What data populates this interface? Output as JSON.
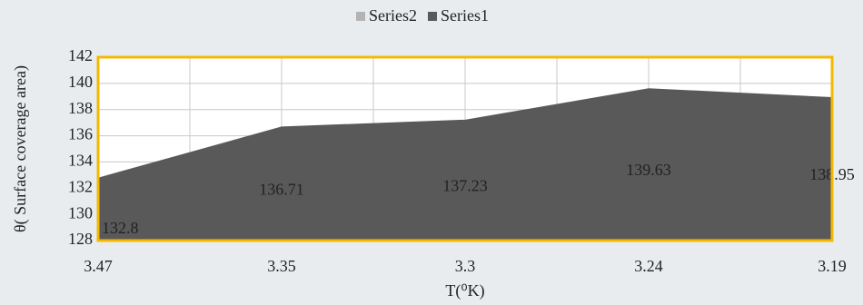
{
  "chart_data": {
    "type": "area",
    "x_label": "T(⁰K)",
    "y_label": "θ( Surface coverage area)",
    "categories": [
      "3.47",
      "3.35",
      "3.3",
      "3.24",
      "3.19"
    ],
    "series": [
      {
        "name": "Series2",
        "color": "#b3b3b3",
        "values": [
          null,
          null,
          null,
          null,
          null
        ]
      },
      {
        "name": "Series1",
        "color": "#595959",
        "values": [
          132.8,
          136.71,
          137.23,
          139.63,
          138.95
        ]
      }
    ],
    "ylim": [
      128,
      142
    ],
    "yticks": [
      128,
      130,
      132,
      134,
      136,
      138,
      140,
      142
    ],
    "grid": true,
    "legend": "top",
    "frame_color": "#f5b800"
  }
}
